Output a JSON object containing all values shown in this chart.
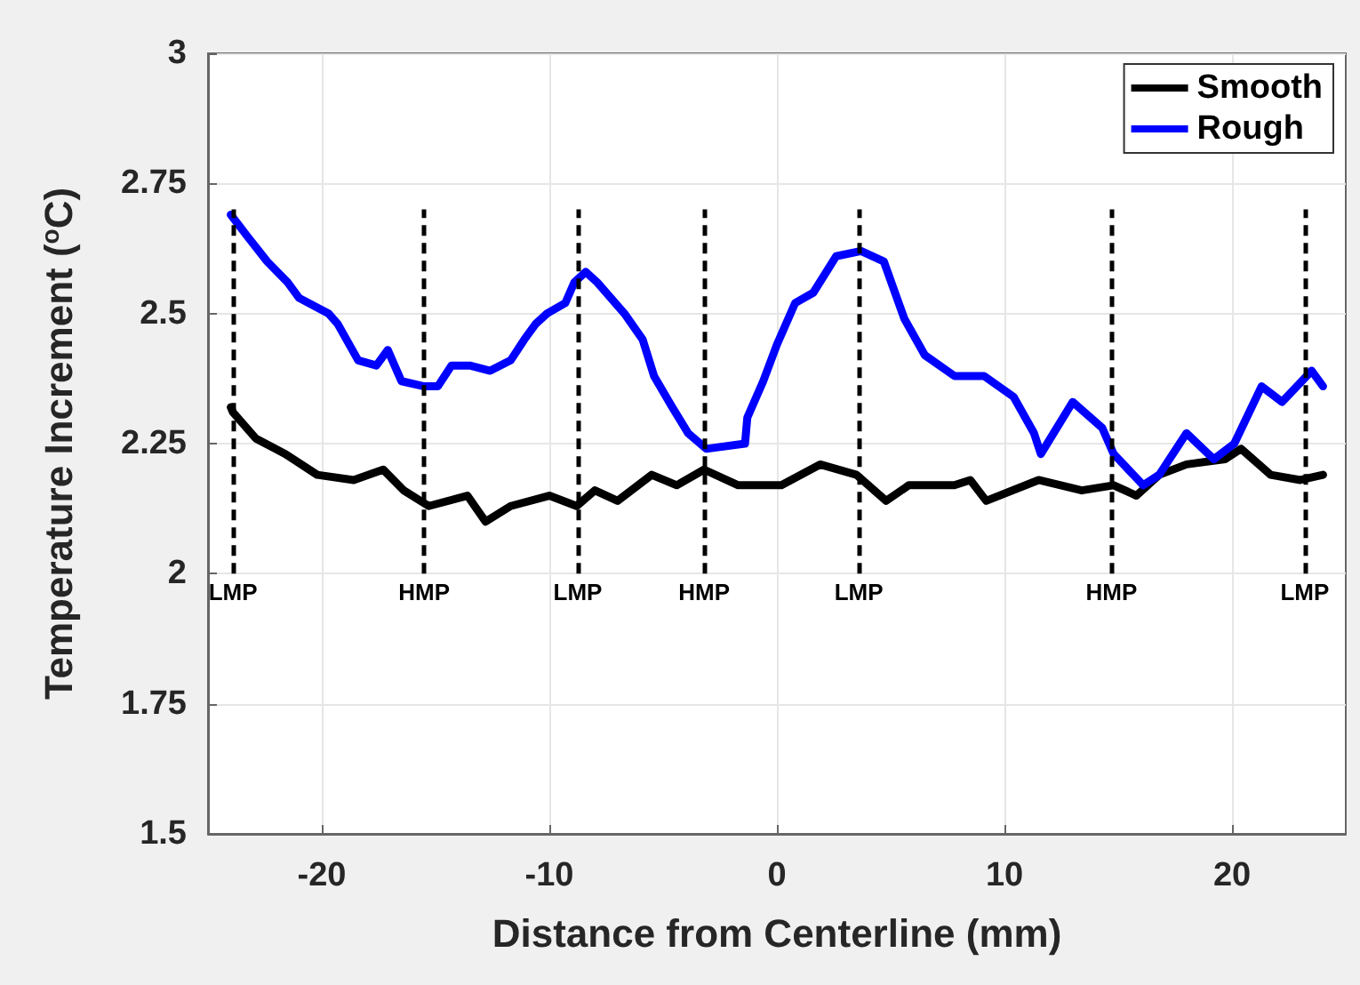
{
  "chart_data": {
    "type": "line",
    "xlabel": "Distance from Centerline (mm)",
    "ylabel": "Temperature Increment ($^{o}$C)",
    "xlim": [
      -25,
      25
    ],
    "xticks": [
      -20,
      -10,
      0,
      10,
      20
    ],
    "ylim": [
      1.5,
      3
    ],
    "yticks": [
      1.5,
      1.75,
      2,
      2.25,
      2.5,
      2.75,
      3
    ],
    "grid": true,
    "legend": "top right",
    "marker": "none",
    "line_style": "solid",
    "series": [
      {
        "name": "Smooth",
        "color": "#000000",
        "x": [
          -24.0,
          -23.9,
          -22.9,
          -21.6,
          -20.2,
          -18.6,
          -17.3,
          -16.4,
          -15.3,
          -13.6,
          -12.8,
          -11.7,
          -10.0,
          -8.8,
          -8.0,
          -7.0,
          -5.5,
          -4.4,
          -3.2,
          -1.7,
          0.2,
          1.9,
          3.5,
          4.8,
          5.8,
          7.8,
          8.5,
          9.2,
          11.5,
          13.4,
          14.8,
          15.8,
          16.8,
          18.0,
          19.7,
          20.4,
          21.7,
          23.0,
          24.0
        ],
        "values": [
          2.32,
          2.31,
          2.26,
          2.23,
          2.19,
          2.18,
          2.2,
          2.16,
          2.13,
          2.15,
          2.1,
          2.13,
          2.15,
          2.13,
          2.16,
          2.14,
          2.19,
          2.17,
          2.2,
          2.17,
          2.17,
          2.21,
          2.19,
          2.14,
          2.17,
          2.17,
          2.18,
          2.14,
          2.18,
          2.16,
          2.17,
          2.15,
          2.19,
          2.21,
          2.22,
          2.24,
          2.19,
          2.18,
          2.19
        ]
      },
      {
        "name": "Rough",
        "color": "#0000ff",
        "x": [
          -24.0,
          -23.3,
          -22.4,
          -21.5,
          -21.0,
          -19.7,
          -19.3,
          -18.4,
          -17.6,
          -17.1,
          -16.5,
          -15.5,
          -14.9,
          -14.3,
          -13.5,
          -12.6,
          -11.7,
          -11.1,
          -10.6,
          -10.1,
          -9.3,
          -8.9,
          -8.4,
          -7.9,
          -6.7,
          -5.9,
          -5.4,
          -4.6,
          -3.9,
          -3.1,
          -1.4,
          -1.3,
          -0.6,
          0.0,
          0.8,
          1.6,
          2.6,
          3.7,
          4.7,
          5.6,
          6.5,
          7.8,
          9.1,
          10.4,
          11.3,
          11.6,
          13.0,
          14.3,
          14.8,
          16.1,
          16.8,
          18.0,
          19.2,
          20.1,
          21.3,
          22.2,
          23.5,
          24.0
        ],
        "values": [
          2.69,
          2.65,
          2.6,
          2.56,
          2.53,
          2.5,
          2.48,
          2.41,
          2.4,
          2.43,
          2.37,
          2.36,
          2.36,
          2.4,
          2.4,
          2.39,
          2.41,
          2.45,
          2.48,
          2.5,
          2.52,
          2.56,
          2.58,
          2.56,
          2.5,
          2.45,
          2.38,
          2.32,
          2.27,
          2.24,
          2.25,
          2.3,
          2.37,
          2.44,
          2.52,
          2.54,
          2.61,
          2.62,
          2.6,
          2.49,
          2.42,
          2.38,
          2.38,
          2.34,
          2.27,
          2.23,
          2.33,
          2.28,
          2.23,
          2.17,
          2.19,
          2.27,
          2.22,
          2.25,
          2.36,
          2.33,
          2.39,
          2.36
        ]
      }
    ],
    "ref_lines": [
      {
        "axis": "x",
        "value": -23.9,
        "label": "LMP",
        "color": "#000000",
        "line_style": "dashed"
      },
      {
        "axis": "x",
        "value": -15.5,
        "label": "HMP",
        "color": "#000000",
        "line_style": "dashed"
      },
      {
        "axis": "x",
        "value": -8.75,
        "label": "LMP",
        "color": "#000000",
        "line_style": "dashed"
      },
      {
        "axis": "x",
        "value": -3.2,
        "label": "HMP",
        "color": "#000000",
        "line_style": "dashed"
      },
      {
        "axis": "x",
        "value": 3.6,
        "label": "LMP",
        "color": "#000000",
        "line_style": "dashed"
      },
      {
        "axis": "x",
        "value": 14.7,
        "label": "HMP",
        "color": "#000000",
        "line_style": "dashed"
      },
      {
        "axis": "x",
        "value": 23.2,
        "label": "LMP",
        "color": "#000000",
        "line_style": "dashed"
      }
    ]
  }
}
